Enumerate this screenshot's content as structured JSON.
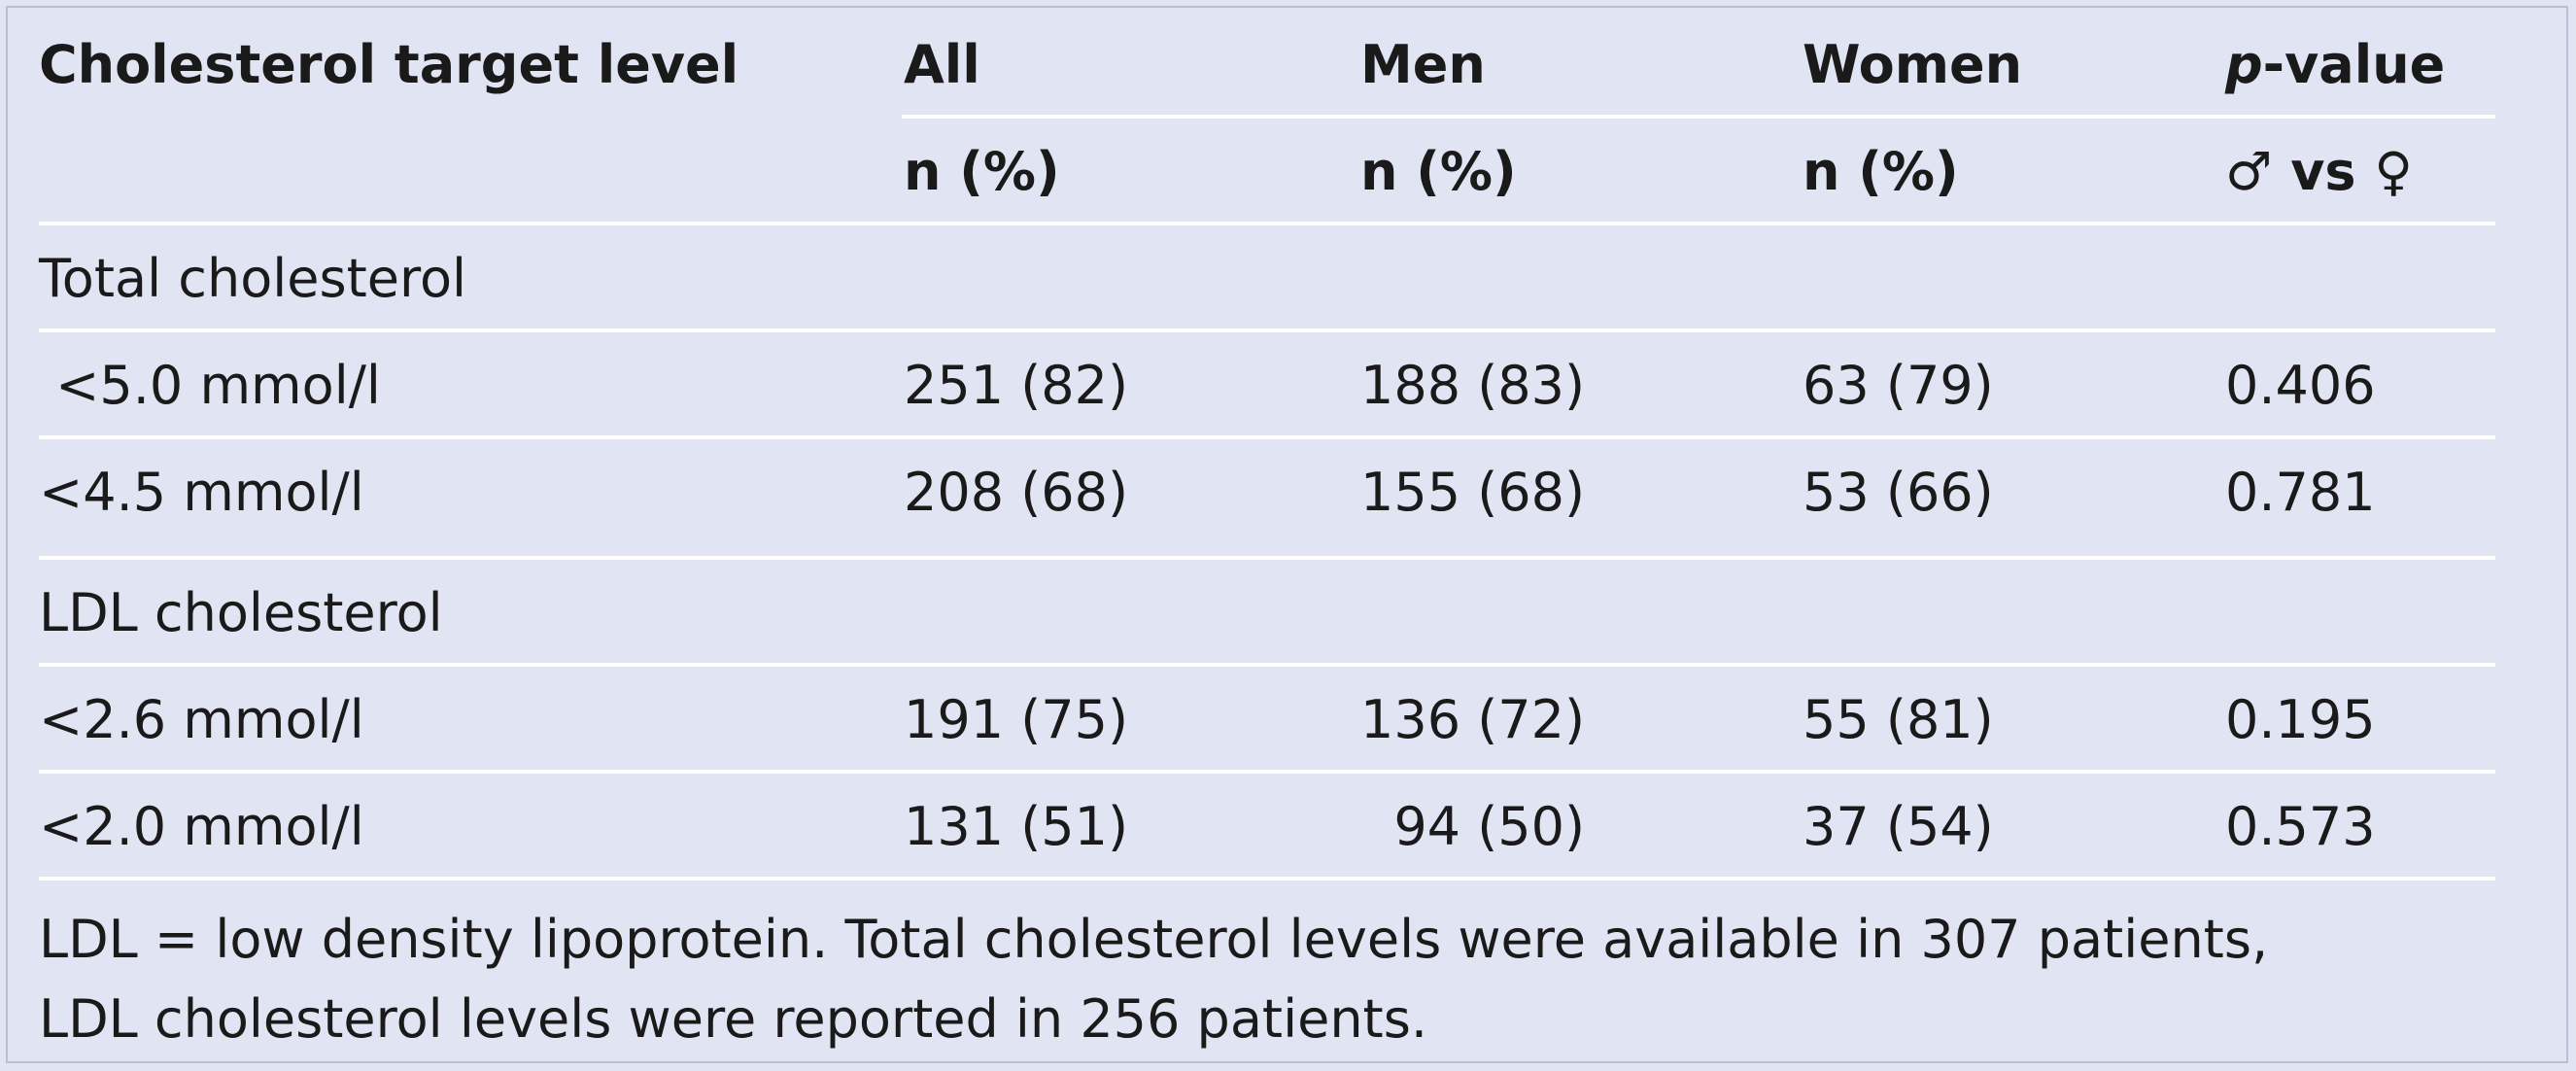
{
  "table": {
    "headers": {
      "col0": "Cholesterol target level",
      "col1": "All",
      "col2": "Men",
      "col3": "Women",
      "col4_italic": "p",
      "col4_rest": "-value"
    },
    "subheaders": {
      "col1": "n (%)",
      "col2": "n (%)",
      "col3": "n (%)",
      "col4_male": "♂",
      "col4_vs": " vs ",
      "col4_female": "♀"
    },
    "rows": [
      {
        "label": "Total cholesterol",
        "all": "",
        "men": "",
        "women": "",
        "p": ""
      },
      {
        "label": " <5.0 mmol/l",
        "all": "251 (82)",
        "men": "188 (83)",
        "women": "63 (79)",
        "p": "0.406"
      },
      {
        "label": "<4.5 mmol/l",
        "all": "208 (68)",
        "men": "155 (68)",
        "women": "53 (66)",
        "p": "0.781"
      },
      {
        "label": "LDL cholesterol",
        "all": "",
        "men": "",
        "women": "",
        "p": ""
      },
      {
        "label": "<2.6 mmol/l",
        "all": "191 (75)",
        "men": "136 (72)",
        "women": "55 (81)",
        "p": "0.195"
      },
      {
        "label": "<2.0 mmol/l",
        "all": "131 (51)",
        "men": "  94 (50)",
        "women": "37 (54)",
        "p": "0.573"
      }
    ],
    "footnote": [
      "LDL = low density lipoprotein. Total cholesterol levels were available in 307 patients,",
      "LDL cholesterol levels were reported in 256 patients."
    ]
  }
}
